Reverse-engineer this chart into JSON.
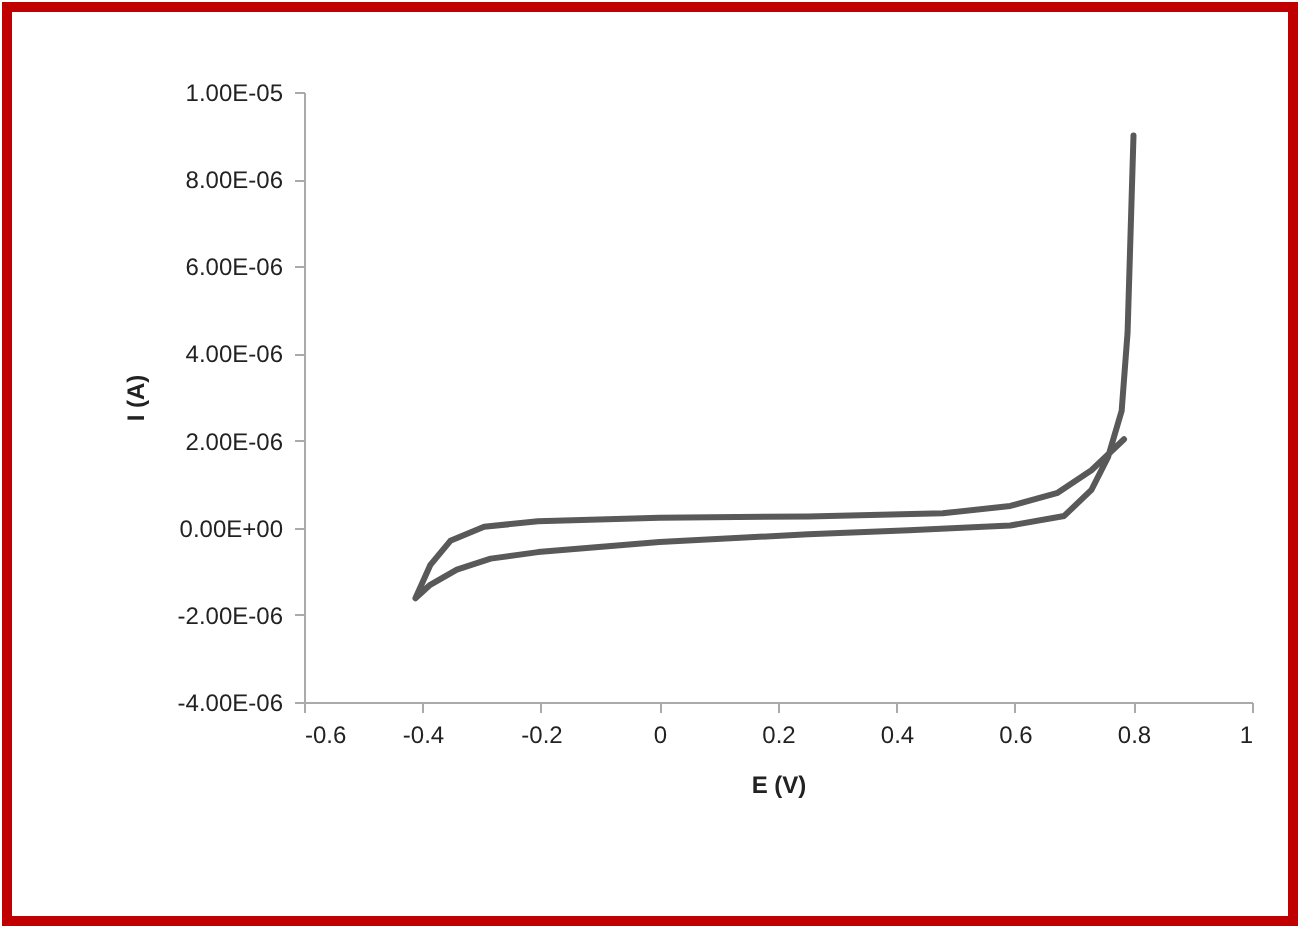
{
  "chart_data": {
    "type": "line",
    "xlabel": "E (V)",
    "ylabel": "I (A)",
    "x": [
      0.8,
      0.79,
      0.78,
      0.757,
      0.729,
      0.683,
      0.592,
      0.421,
      0.251,
      0,
      -0.205,
      -0.285,
      -0.342,
      -0.387,
      -0.412,
      -0.404,
      -0.387,
      -0.353,
      -0.296,
      -0.205,
      0,
      0.251,
      0.478,
      0.592,
      0.672,
      0.729,
      0.784
    ],
    "series": [
      {
        "color": "#595959",
        "values": [
          9e-06,
          4.48e-06,
          2.68e-06,
          1.62e-06,
          8.7e-07,
          2.7e-07,
          5e-08,
          -6e-08,
          -1.5e-07,
          -3.3e-07,
          -5.6e-07,
          -7.1e-07,
          -9.6e-07,
          -1.31e-06,
          -1.62e-06,
          -1.38e-06,
          -8.6e-07,
          -3e-07,
          2e-08,
          1.5e-07,
          2.3e-07,
          2.6e-07,
          3.3e-07,
          5e-07,
          8e-07,
          1.32e-06,
          2.03e-06
        ]
      }
    ],
    "xlim": [
      -0.6,
      1
    ],
    "xticks": [
      -0.6,
      -0.4,
      -0.2,
      0,
      0.2,
      0.4,
      0.6,
      0.8,
      1
    ],
    "ylim": [
      -4e-06,
      1e-05
    ],
    "yticks": [
      {
        "value": -4e-06,
        "label": "-4.00E-06"
      },
      {
        "value": -2e-06,
        "label": "-2.00E-06"
      },
      {
        "value": 0,
        "label": "0.00E+00"
      },
      {
        "value": 2e-06,
        "label": "2.00E-06"
      },
      {
        "value": 4e-06,
        "label": "4.00E-06"
      },
      {
        "value": 6e-06,
        "label": "6.00E-06"
      },
      {
        "value": 8e-06,
        "label": "8.00E-06"
      },
      {
        "value": 1e-05,
        "label": "1.00E-05"
      }
    ],
    "line_style": "solid"
  }
}
